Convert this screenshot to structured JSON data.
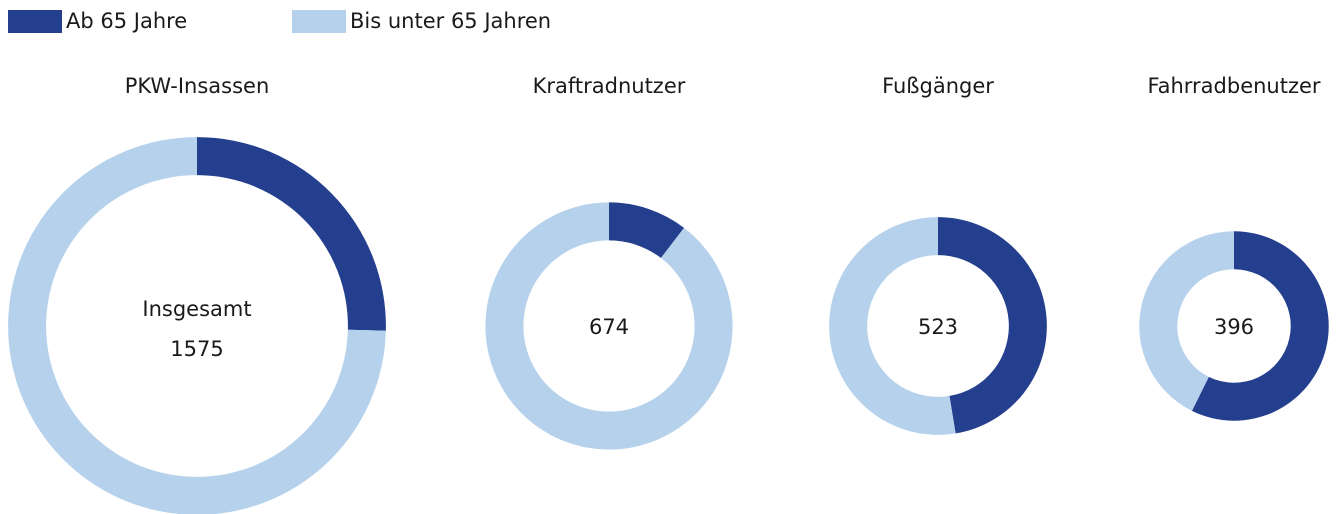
{
  "legend": [
    {
      "name": "Ab 65 Jahre",
      "color": "#253f8f"
    },
    {
      "name": "Bis unter 65 Jahren",
      "color": "#b5d1ec"
    }
  ],
  "center_label": "Insgesamt",
  "chart_data": [
    {
      "type": "pie",
      "title": "PKW-Insassen",
      "total": 1575,
      "values": [
        400,
        1175
      ]
    },
    {
      "type": "pie",
      "title": "Kraftradnutzer",
      "total": 674,
      "values": [
        70,
        604
      ]
    },
    {
      "type": "pie",
      "title": "Fußgänger",
      "total": 523,
      "values": [
        248,
        275
      ]
    },
    {
      "type": "pie",
      "title": "Fahrradbenutzer",
      "total": 396,
      "values": [
        227,
        169
      ]
    }
  ]
}
